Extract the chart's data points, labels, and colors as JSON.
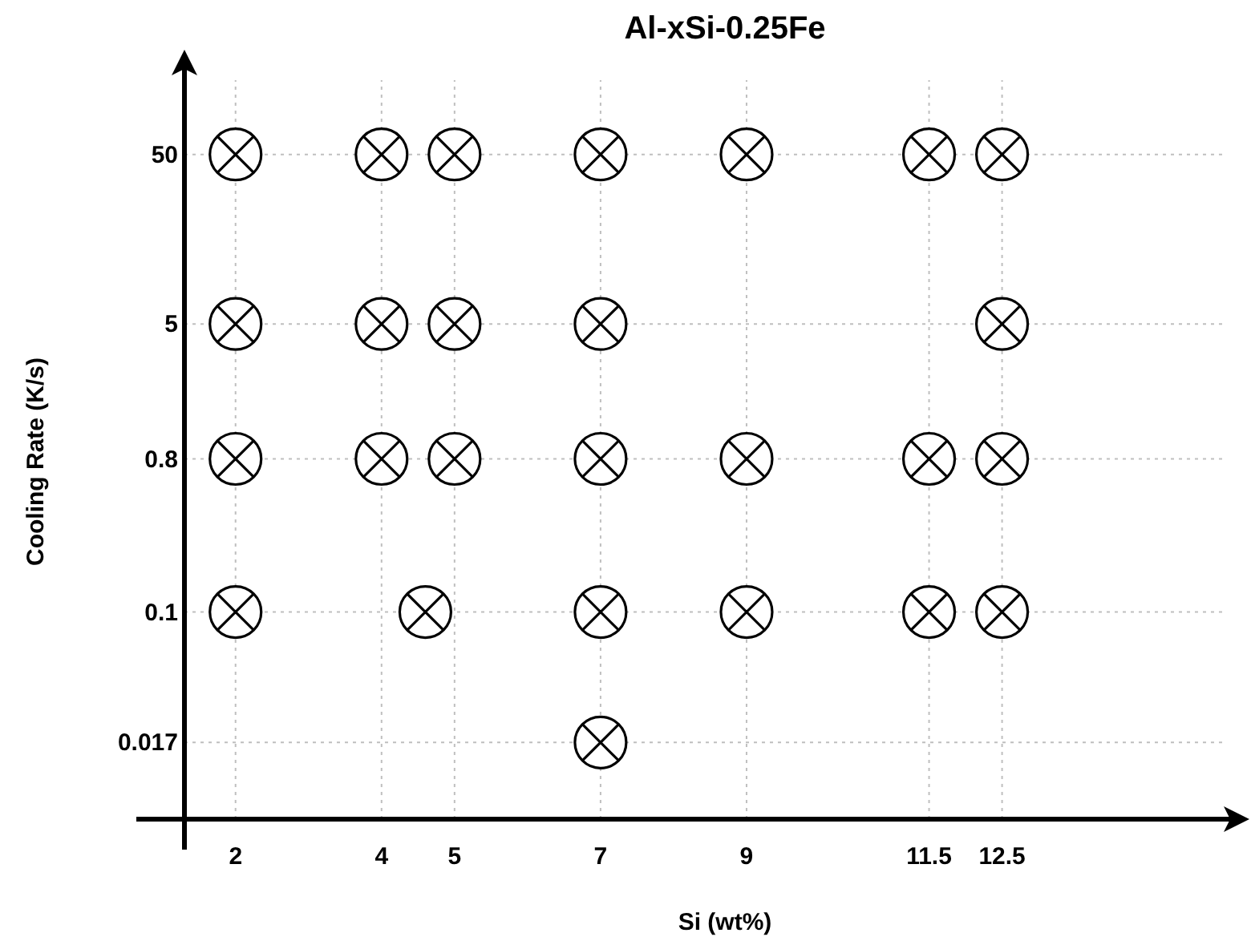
{
  "chart_data": {
    "type": "scatter",
    "title": "Al-xSi-0.25Fe",
    "xlabel": "Si (wt%)",
    "ylabel": "Cooling Rate (K/s)",
    "x": [
      2,
      4,
      5,
      7,
      9,
      11.5,
      12.5,
      2,
      4,
      5,
      7,
      12.5,
      2,
      4,
      5,
      7,
      9,
      11.5,
      12.5,
      2,
      4.6,
      7,
      9,
      11.5,
      12.5,
      7
    ],
    "series": [
      {
        "color": "#000000",
        "values": [
          50,
          50,
          50,
          50,
          50,
          50,
          50,
          5,
          5,
          5,
          5,
          5,
          0.8,
          0.8,
          0.8,
          0.8,
          0.8,
          0.8,
          0.8,
          0.1,
          0.1,
          0.1,
          0.1,
          0.1,
          0.1,
          0.017
        ]
      }
    ],
    "xlim": [
      1.3,
      15.8
    ],
    "xticks": [
      2,
      4,
      5,
      7,
      9,
      11.5,
      12.5
    ],
    "ylim": [
      0.006,
      190
    ],
    "yticks": [
      0.017,
      0.1,
      0.8,
      5,
      50
    ],
    "log": "y",
    "grid": true,
    "marker": "circle"
  }
}
